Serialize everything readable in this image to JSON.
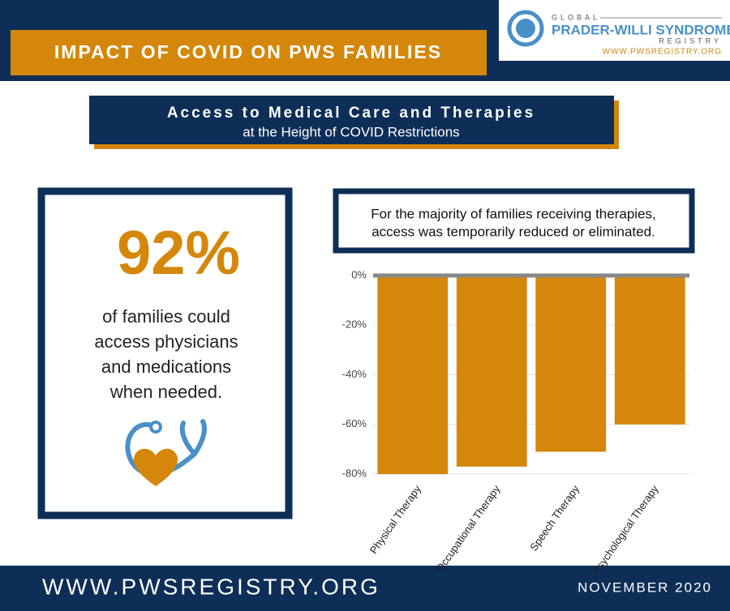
{
  "header": {
    "title": "IMPACT OF COVID ON PWS FAMILIES",
    "logo": {
      "top": "GLOBAL",
      "name": "PRADER-WILLI SYNDROME",
      "sub": "REGISTRY",
      "url": "WWW.PWSREGISTRY.ORG"
    }
  },
  "subtitle": {
    "title": "Access to Medical Care and Therapies",
    "sub": "at the Height of COVID Restrictions"
  },
  "stat": {
    "value": "92%",
    "lines": [
      "of families could",
      "access physicians",
      "and medications",
      "when needed."
    ]
  },
  "note": {
    "lines": [
      "For the majority of families receiving therapies,",
      "access was temporarily reduced or eliminated."
    ]
  },
  "chart_data": {
    "type": "bar",
    "categories": [
      "Physical Therapy",
      "Occupational Therapy",
      "Speech Therapy",
      "Psychological Therapy"
    ],
    "values": [
      -80,
      -77,
      -71,
      -60
    ],
    "color": "#d4870a",
    "ylim": [
      -80,
      0
    ],
    "yticks": [
      {
        "value": 0,
        "label": "0%"
      },
      {
        "value": -20,
        "label": "-20%"
      },
      {
        "value": -40,
        "label": "-40%"
      },
      {
        "value": -60,
        "label": "-60%"
      },
      {
        "value": -80,
        "label": "-80%"
      }
    ],
    "grid": true
  },
  "footer": {
    "url": "WWW.PWSREGISTRY.ORG",
    "date": "NOVEMBER 2020"
  }
}
